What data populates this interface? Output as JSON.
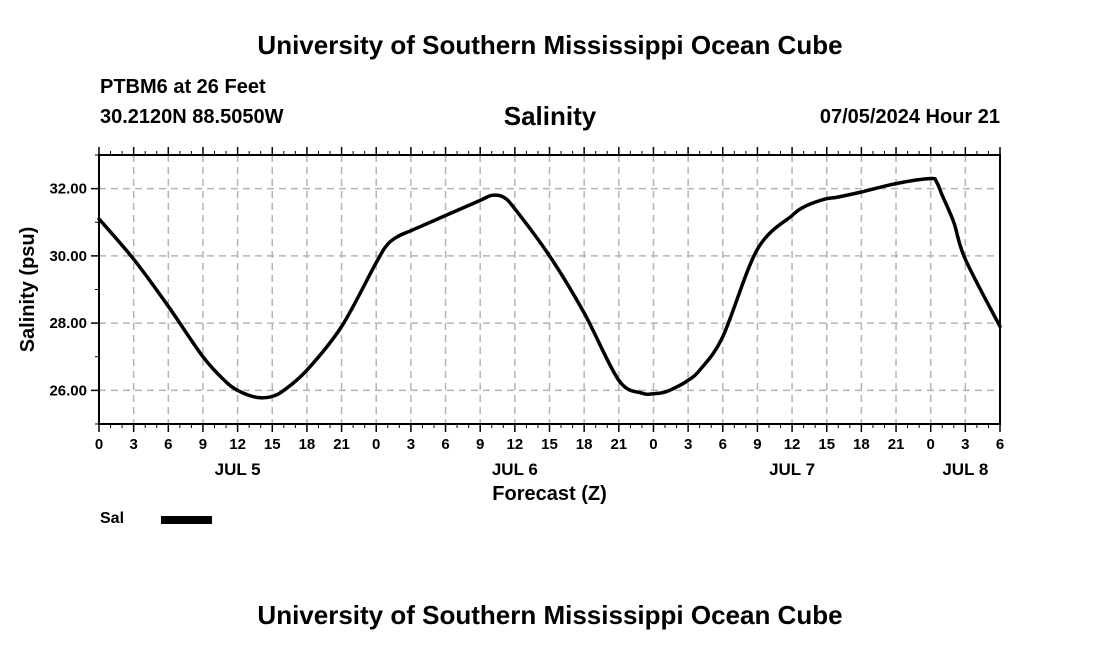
{
  "header": {
    "title": "University of Southern Mississippi Ocean Cube",
    "station": "PTBM6 at 26 Feet",
    "coords": "30.2120N  88.5050W",
    "datetime": "07/05/2024 Hour 21"
  },
  "footer": {
    "title": "University of Southern Mississippi Ocean Cube"
  },
  "legend": {
    "label": "Sal",
    "color": "#000000"
  },
  "chart_data": {
    "type": "line",
    "title": "Salinity",
    "xlabel": "Forecast (Z)",
    "ylabel": "Salinity (psu)",
    "xlim": [
      0,
      78
    ],
    "ylim": [
      25,
      33
    ],
    "yticks": [
      26,
      28,
      30,
      32
    ],
    "ytick_labels": [
      "26.00",
      "28.00",
      "30.00",
      "32.00"
    ],
    "xtick_step": 3,
    "xtick_labels": [
      "0",
      "3",
      "6",
      "9",
      "12",
      "15",
      "18",
      "21",
      "0",
      "3",
      "6",
      "9",
      "12",
      "15",
      "18",
      "21",
      "0",
      "3",
      "6",
      "9",
      "12",
      "15",
      "18",
      "21",
      "0",
      "3",
      "6"
    ],
    "day_labels": [
      {
        "label": "JUL 5",
        "hour": 12
      },
      {
        "label": "JUL 6",
        "hour": 36
      },
      {
        "label": "JUL 7",
        "hour": 60
      },
      {
        "label": "JUL 8",
        "hour": 75
      }
    ],
    "grid": true,
    "series": [
      {
        "name": "Sal",
        "x": [
          0,
          3,
          6,
          9,
          11,
          12,
          13,
          14,
          15,
          16,
          18,
          21,
          24,
          25,
          26,
          27,
          30,
          33,
          34,
          35,
          36,
          39,
          42,
          45,
          47,
          48,
          49,
          50,
          51,
          52,
          54,
          57,
          60,
          61,
          62,
          63,
          64,
          66,
          69,
          72,
          72.5,
          73,
          74,
          75,
          78
        ],
        "values": [
          31.1,
          29.9,
          28.5,
          27.0,
          26.25,
          26.0,
          25.85,
          25.78,
          25.82,
          26.0,
          26.6,
          27.9,
          29.8,
          30.35,
          30.6,
          30.75,
          31.2,
          31.65,
          31.8,
          31.75,
          31.4,
          30.0,
          28.3,
          26.3,
          25.92,
          25.9,
          25.95,
          26.1,
          26.3,
          26.6,
          27.6,
          30.2,
          31.2,
          31.45,
          31.6,
          31.7,
          31.75,
          31.9,
          32.15,
          32.3,
          32.2,
          31.8,
          31.0,
          29.9,
          27.9
        ]
      }
    ]
  }
}
